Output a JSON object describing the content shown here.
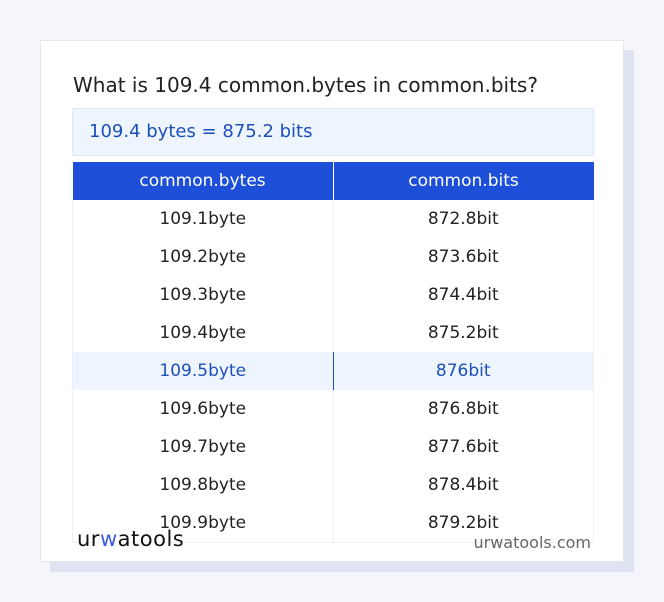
{
  "title": "What is 109.4 common.bytes in common.bits?",
  "result": "109.4 bytes = 875.2 bits",
  "table": {
    "headers": [
      "common.bytes",
      "common.bits"
    ],
    "rows": [
      [
        "109.1byte",
        "872.8bit"
      ],
      [
        "109.2byte",
        "873.6bit"
      ],
      [
        "109.3byte",
        "874.4bit"
      ],
      [
        "109.4byte",
        "875.2bit"
      ],
      [
        "109.5byte",
        "876bit"
      ],
      [
        "109.6byte",
        "876.8bit"
      ],
      [
        "109.7byte",
        "877.6bit"
      ],
      [
        "109.8byte",
        "878.4bit"
      ],
      [
        "109.9byte",
        "879.2bit"
      ]
    ],
    "highlighted_row": 4
  },
  "footer": {
    "logo": {
      "a": "ur",
      "b": "w",
      "c": "atools"
    },
    "site": "urwatools.com"
  },
  "colors": {
    "accent": "#1d4fd8",
    "highlight_bg": "#eef5fe"
  }
}
